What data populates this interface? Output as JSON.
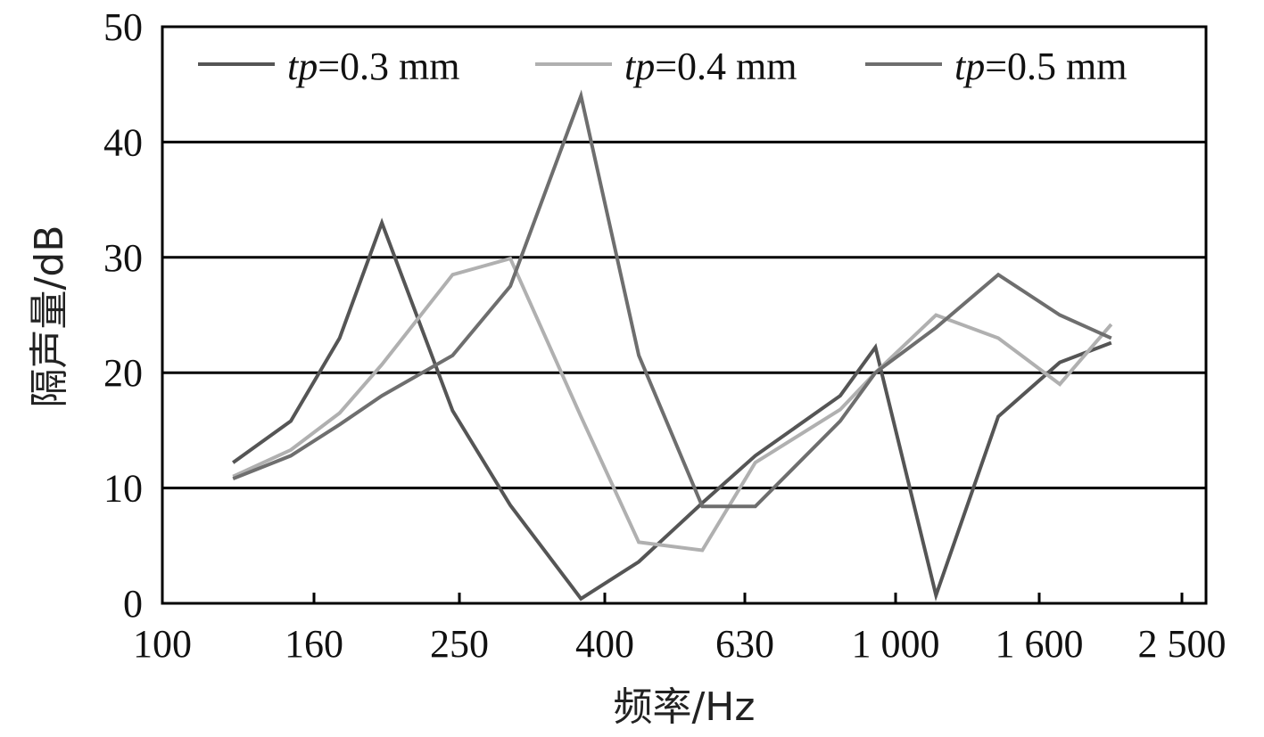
{
  "chart_data": {
    "type": "line",
    "xlabel": "频率/Hz",
    "ylabel": "隔声量/dB",
    "ylim": [
      0,
      50
    ],
    "y_ticks": [
      "0",
      "10",
      "20",
      "30",
      "40",
      "50"
    ],
    "x_ticks": [
      "100",
      "160",
      "250",
      "400",
      "630",
      "1 000",
      "1 600",
      "2 500"
    ],
    "x_scale": "log",
    "grid": "horizontal",
    "legend_position": "top",
    "x": [
      125,
      150,
      175,
      200,
      250,
      300,
      375,
      450,
      550,
      650,
      850,
      950,
      1150,
      1400,
      1700,
      2000
    ],
    "series": [
      {
        "name_italic": "tp",
        "name_rest": "=0.3 mm",
        "color": "#555555",
        "values": [
          12.2,
          15.8,
          23.0,
          33.0,
          16.7,
          8.5,
          0.4,
          3.6,
          8.7,
          12.8,
          18.0,
          22.2,
          0.7,
          16.2,
          20.9,
          22.6
        ]
      },
      {
        "name_italic": "tp",
        "name_rest": "=0.4 mm",
        "color": "#b0b0b0",
        "values": [
          11.0,
          13.3,
          16.5,
          20.7,
          28.5,
          29.9,
          16.2,
          5.3,
          4.6,
          12.2,
          16.8,
          20.0,
          25.0,
          23.0,
          19.0,
          24.2
        ]
      },
      {
        "name_italic": "tp",
        "name_rest": "=0.5 mm",
        "color": "#6e6e6e",
        "values": [
          10.8,
          12.8,
          15.5,
          18.0,
          21.5,
          27.5,
          44.0,
          21.5,
          8.4,
          8.4,
          15.8,
          20.0,
          23.9,
          28.5,
          25.0,
          23.0
        ]
      }
    ]
  }
}
